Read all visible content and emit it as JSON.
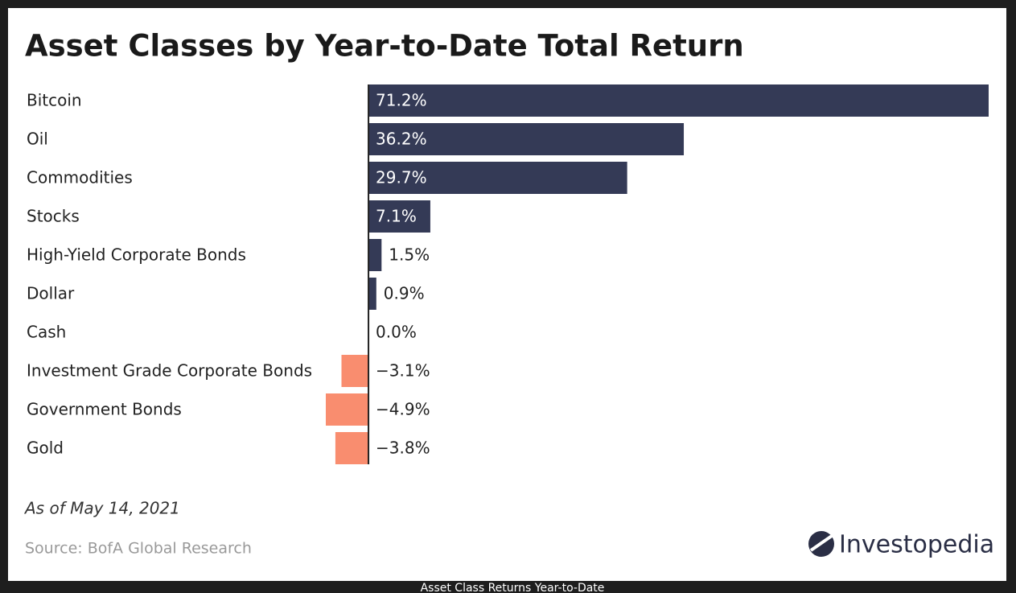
{
  "chart_data": {
    "type": "bar",
    "orientation": "horizontal",
    "title": "Asset Classes by Year-to-Date Total Return",
    "categories": [
      "Bitcoin",
      "Oil",
      "Commodities",
      "Stocks",
      "High-Yield Corporate Bonds",
      "Dollar",
      "Cash",
      "Investment Grade Corporate Bonds",
      "Government Bonds",
      "Gold"
    ],
    "values": [
      71.2,
      36.2,
      29.7,
      7.1,
      1.5,
      0.9,
      0.0,
      -3.1,
      -4.9,
      -3.8
    ],
    "value_labels": [
      "71.2%",
      "36.2%",
      "29.7%",
      "7.1%",
      "1.5%",
      "0.9%",
      "0.0%",
      "−3.1%",
      "−4.9%",
      "−3.8%"
    ],
    "positive_color": "#343a56",
    "negative_color": "#f98d6f",
    "xlim": [
      -4.9,
      71.2
    ],
    "note": "As of May 14, 2021",
    "source": "Source: BofA Global Research",
    "logo": "Investopedia"
  },
  "caption": "Asset Class Returns Year-to-Date"
}
